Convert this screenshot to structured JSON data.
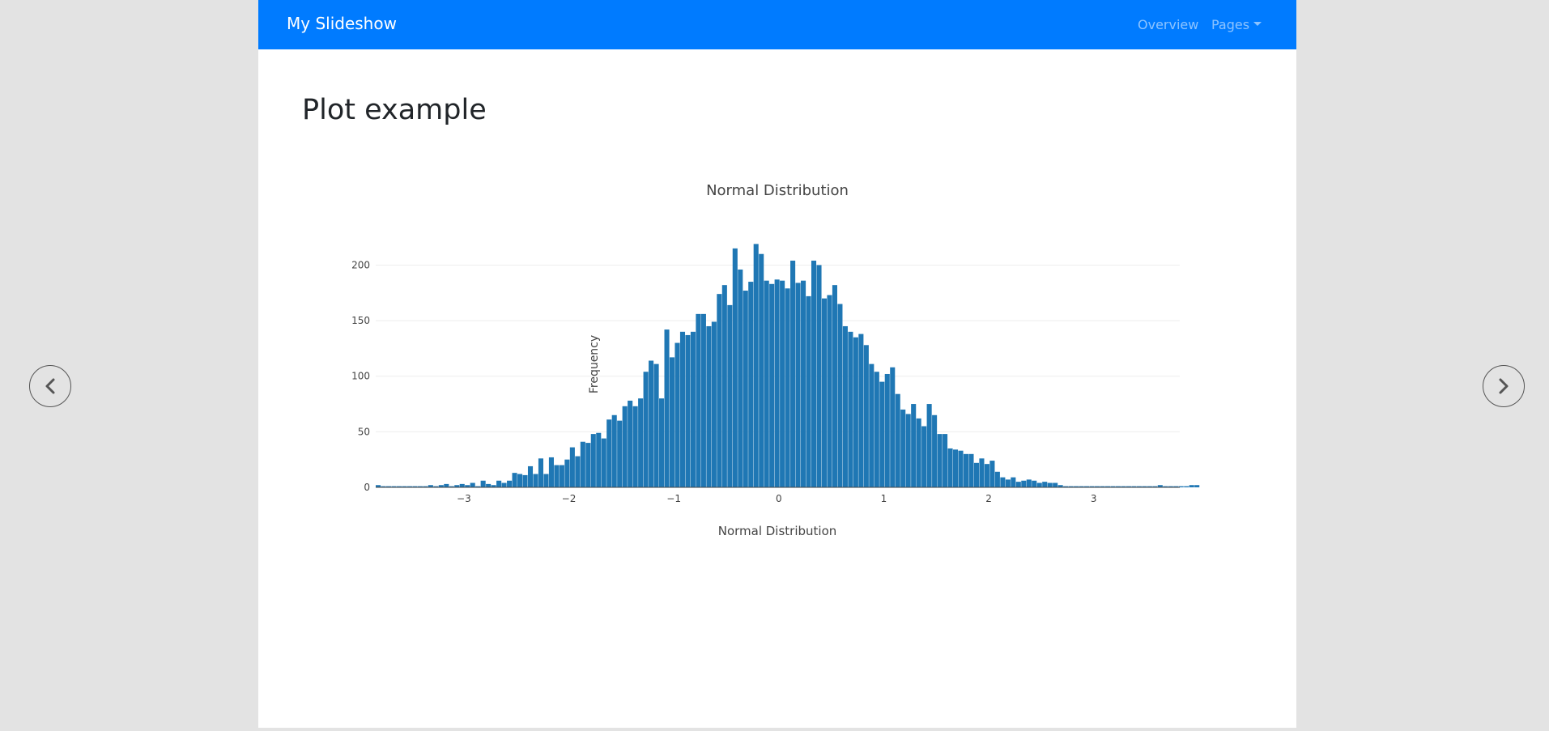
{
  "navbar": {
    "brand": "My Slideshow",
    "links": [
      {
        "label": "Overview"
      },
      {
        "label": "Pages"
      }
    ],
    "color": "#007bff"
  },
  "page": {
    "title": "Plot example"
  },
  "controls": {
    "prev_icon": "chevron-left-icon",
    "next_icon": "chevron-right-icon"
  },
  "chart_data": {
    "type": "bar",
    "title": "Normal Distribution",
    "xlabel": "Normal Distribution",
    "ylabel": "Frequency",
    "bar_color": "#1f77b4",
    "grid": true,
    "xlim": [
      -3.84,
      3.82
    ],
    "ylim": [
      0,
      220
    ],
    "x_ticks": [
      -3,
      -2,
      -1,
      0,
      1,
      2,
      3
    ],
    "x_tick_labels": [
      "−3",
      "−2",
      "−1",
      "0",
      "1",
      "2",
      "3"
    ],
    "y_ticks": [
      0,
      50,
      100,
      150,
      200
    ],
    "y_tick_labels": [
      "0",
      "50",
      "100",
      "150",
      "200"
    ],
    "bin_start": -3.84,
    "bin_width": 0.05,
    "values": [
      2,
      1,
      1,
      1,
      1,
      1,
      1,
      1,
      1,
      1,
      2,
      1,
      2,
      3,
      1,
      2,
      3,
      2,
      4,
      1,
      6,
      3,
      2,
      6,
      4,
      6,
      13,
      12,
      11,
      19,
      12,
      26,
      12,
      27,
      20,
      20,
      25,
      36,
      28,
      41,
      40,
      48,
      49,
      44,
      61,
      65,
      60,
      73,
      78,
      73,
      80,
      104,
      114,
      111,
      80,
      142,
      117,
      130,
      140,
      137,
      140,
      156,
      156,
      145,
      149,
      174,
      182,
      164,
      215,
      196,
      177,
      185,
      219,
      210,
      186,
      183,
      187,
      186,
      179,
      204,
      184,
      186,
      172,
      204,
      200,
      170,
      173,
      182,
      165,
      145,
      140,
      135,
      138,
      128,
      111,
      104,
      95,
      102,
      108,
      84,
      70,
      66,
      75,
      62,
      55,
      75,
      65,
      48,
      48,
      35,
      34,
      33,
      30,
      30,
      22,
      26,
      21,
      24,
      14,
      9,
      7,
      9,
      5,
      6,
      7,
      6,
      4,
      5,
      4,
      4,
      2,
      1,
      1,
      1,
      1,
      1,
      1,
      1,
      1,
      1,
      1,
      1,
      1,
      1,
      1,
      1,
      1,
      1,
      1,
      2,
      1,
      1,
      1,
      1,
      1,
      2,
      2
    ]
  }
}
